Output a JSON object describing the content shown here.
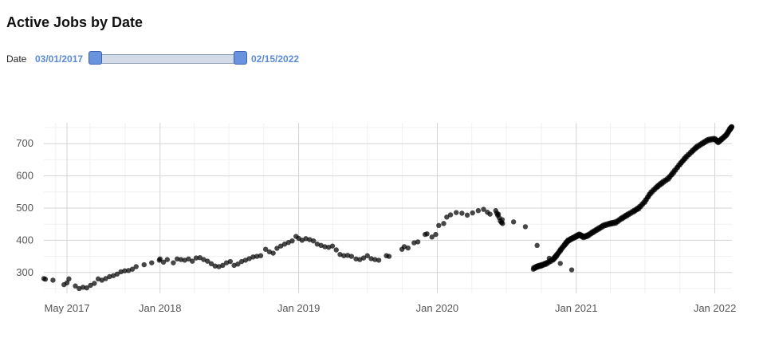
{
  "page": {
    "title": "Active Jobs by Date"
  },
  "filter": {
    "label": "Date",
    "start": "03/01/2017",
    "end": "02/15/2022"
  },
  "chart_data": {
    "type": "scatter",
    "x_type": "date",
    "xlim": [
      "2017-03-01",
      "2022-02-15"
    ],
    "ylim": [
      235,
      765
    ],
    "x_ticks": [
      {
        "date": "2017-05-01",
        "label": "May 2017"
      },
      {
        "date": "2018-01-01",
        "label": "Jan 2018"
      },
      {
        "date": "2019-01-01",
        "label": "Jan 2019"
      },
      {
        "date": "2020-01-01",
        "label": "Jan 2020"
      },
      {
        "date": "2021-01-01",
        "label": "Jan 2021"
      },
      {
        "date": "2022-01-01",
        "label": "Jan 2022"
      }
    ],
    "y_ticks": [
      300,
      400,
      500,
      600,
      700
    ],
    "grid": true,
    "color": "#000000",
    "points": [
      [
        "2017-03-01",
        281
      ],
      [
        "2017-03-05",
        279
      ],
      [
        "2017-03-25",
        276
      ],
      [
        "2017-04-23",
        262
      ],
      [
        "2017-05-01",
        268
      ],
      [
        "2017-05-06",
        280
      ],
      [
        "2017-05-23",
        258
      ],
      [
        "2017-06-02",
        250
      ],
      [
        "2017-06-12",
        254
      ],
      [
        "2017-06-22",
        252
      ],
      [
        "2017-07-02",
        260
      ],
      [
        "2017-07-12",
        266
      ],
      [
        "2017-07-22",
        280
      ],
      [
        "2017-08-01",
        276
      ],
      [
        "2017-08-11",
        281
      ],
      [
        "2017-08-21",
        287
      ],
      [
        "2017-08-31",
        290
      ],
      [
        "2017-09-10",
        295
      ],
      [
        "2017-09-20",
        302
      ],
      [
        "2017-09-30",
        305
      ],
      [
        "2017-10-10",
        306
      ],
      [
        "2017-10-20",
        310
      ],
      [
        "2017-10-30",
        318
      ],
      [
        "2017-11-20",
        324
      ],
      [
        "2017-12-10",
        330
      ],
      [
        "2017-12-30",
        338
      ],
      [
        "2018-01-01",
        342
      ],
      [
        "2018-01-10",
        332
      ],
      [
        "2018-01-20",
        340
      ],
      [
        "2018-02-05",
        330
      ],
      [
        "2018-02-15",
        342
      ],
      [
        "2018-02-25",
        340
      ],
      [
        "2018-03-07",
        338
      ],
      [
        "2018-03-17",
        342
      ],
      [
        "2018-03-27",
        335
      ],
      [
        "2018-04-06",
        345
      ],
      [
        "2018-04-16",
        346
      ],
      [
        "2018-04-26",
        340
      ],
      [
        "2018-05-06",
        335
      ],
      [
        "2018-05-16",
        327
      ],
      [
        "2018-05-26",
        320
      ],
      [
        "2018-06-05",
        318
      ],
      [
        "2018-06-15",
        322
      ],
      [
        "2018-06-25",
        330
      ],
      [
        "2018-07-05",
        334
      ],
      [
        "2018-07-15",
        322
      ],
      [
        "2018-07-25",
        326
      ],
      [
        "2018-08-04",
        334
      ],
      [
        "2018-08-14",
        338
      ],
      [
        "2018-08-24",
        343
      ],
      [
        "2018-09-03",
        348
      ],
      [
        "2018-09-13",
        350
      ],
      [
        "2018-09-23",
        352
      ],
      [
        "2018-10-06",
        372
      ],
      [
        "2018-10-16",
        364
      ],
      [
        "2018-10-26",
        360
      ],
      [
        "2018-11-05",
        375
      ],
      [
        "2018-11-15",
        382
      ],
      [
        "2018-11-25",
        388
      ],
      [
        "2018-12-05",
        393
      ],
      [
        "2018-12-15",
        398
      ],
      [
        "2018-12-25",
        412
      ],
      [
        "2019-01-01",
        406
      ],
      [
        "2019-01-10",
        400
      ],
      [
        "2019-01-20",
        405
      ],
      [
        "2019-01-30",
        402
      ],
      [
        "2019-02-09",
        398
      ],
      [
        "2019-02-19",
        388
      ],
      [
        "2019-03-01",
        384
      ],
      [
        "2019-03-11",
        380
      ],
      [
        "2019-03-21",
        378
      ],
      [
        "2019-03-31",
        382
      ],
      [
        "2019-04-10",
        370
      ],
      [
        "2019-04-20",
        356
      ],
      [
        "2019-04-30",
        352
      ],
      [
        "2019-05-10",
        353
      ],
      [
        "2019-05-20",
        350
      ],
      [
        "2019-06-01",
        342
      ],
      [
        "2019-06-11",
        340
      ],
      [
        "2019-06-21",
        345
      ],
      [
        "2019-07-01",
        352
      ],
      [
        "2019-07-11",
        343
      ],
      [
        "2019-07-21",
        340
      ],
      [
        "2019-07-31",
        338
      ],
      [
        "2019-08-20",
        352
      ],
      [
        "2019-08-27",
        350
      ],
      [
        "2019-09-30",
        372
      ],
      [
        "2019-10-06",
        380
      ],
      [
        "2019-10-16",
        376
      ],
      [
        "2019-11-01",
        392
      ],
      [
        "2019-11-11",
        395
      ],
      [
        "2019-11-30",
        418
      ],
      [
        "2019-12-05",
        420
      ],
      [
        "2019-12-18",
        410
      ],
      [
        "2019-12-28",
        418
      ],
      [
        "2020-01-05",
        446
      ],
      [
        "2020-01-18",
        452
      ],
      [
        "2020-01-26",
        472
      ],
      [
        "2020-02-05",
        479
      ],
      [
        "2020-02-20",
        486
      ],
      [
        "2020-03-06",
        484
      ],
      [
        "2020-03-20",
        478
      ],
      [
        "2020-04-03",
        485
      ],
      [
        "2020-04-18",
        492
      ],
      [
        "2020-05-02",
        496
      ],
      [
        "2020-05-12",
        487
      ],
      [
        "2020-05-19",
        481
      ],
      [
        "2020-06-20",
        464
      ],
      [
        "2020-07-20",
        457
      ],
      [
        "2020-08-20",
        442
      ],
      [
        "2020-09-20",
        384
      ],
      [
        "2020-10-22",
        344
      ],
      [
        "2020-11-20",
        328
      ],
      [
        "2020-12-20",
        308
      ],
      [
        "2020-06-03",
        492
      ],
      [
        "2020-06-06",
        484
      ],
      [
        "2020-06-08",
        478
      ],
      [
        "2020-06-10",
        481
      ],
      [
        "2020-06-12",
        470
      ],
      [
        "2020-06-15",
        460
      ],
      [
        "2020-06-18",
        455
      ],
      [
        "2020-06-21",
        452
      ]
    ]
  }
}
